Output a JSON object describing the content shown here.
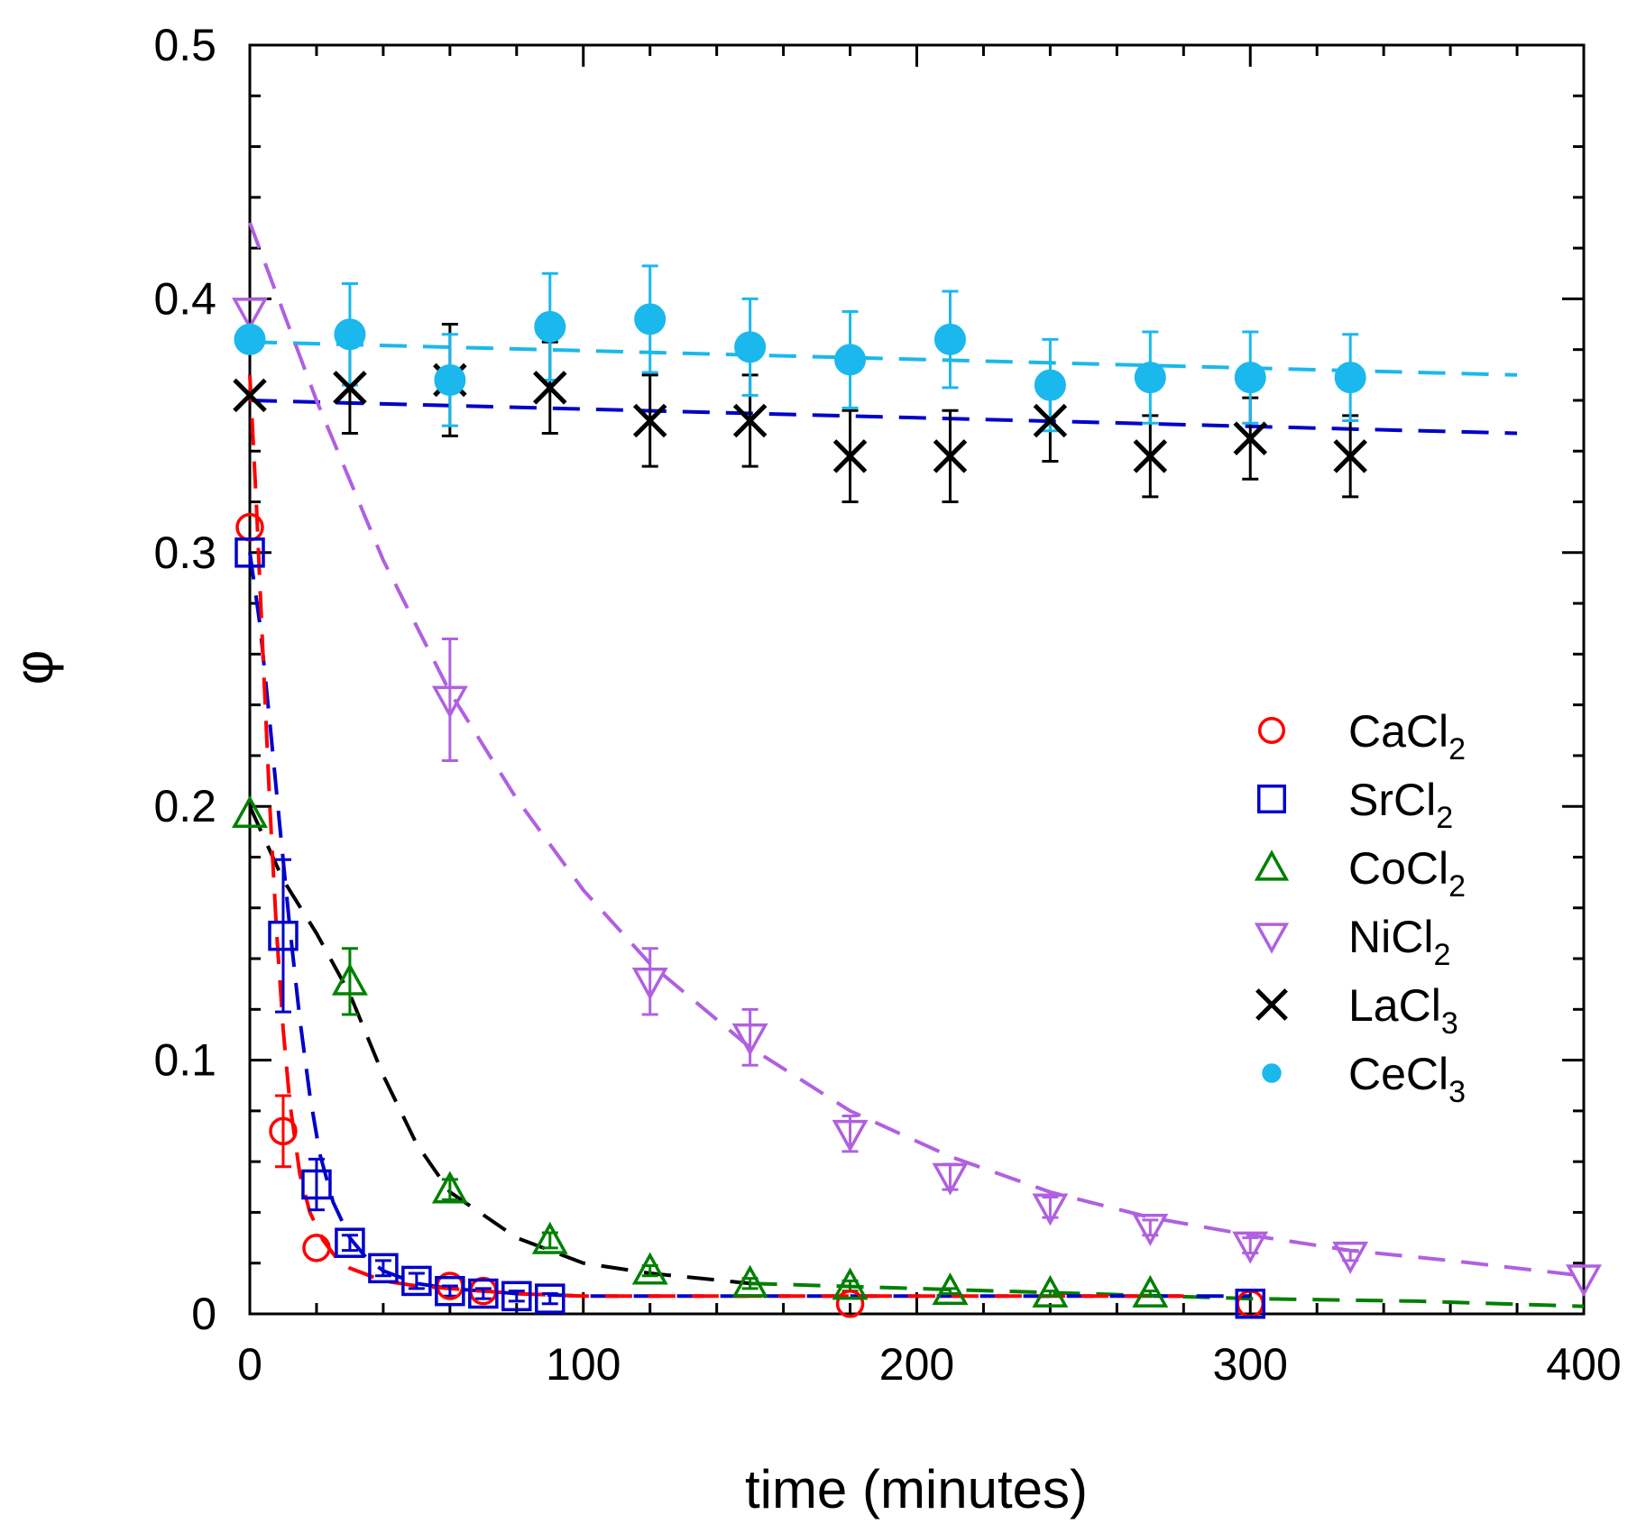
{
  "chart_data": {
    "type": "scatter",
    "title": "",
    "xlabel": "time (minutes)",
    "ylabel": "φ",
    "xlim": [
      0,
      400
    ],
    "ylim": [
      0,
      0.5
    ],
    "xticks": [
      0,
      100,
      200,
      300,
      400
    ],
    "yticks": [
      0,
      0.1,
      0.2,
      0.3,
      0.4,
      0.5
    ],
    "ytick_labels": [
      "0",
      "0.1",
      "0.2",
      "0.3",
      "0.4",
      "0.5"
    ],
    "legend_position": "right-middle",
    "series": [
      {
        "id": "cacl2",
        "label": "CaCl",
        "subscript": "2",
        "marker": "circle-open",
        "color": "#ff0000",
        "x": [
          0,
          10,
          20,
          60,
          70,
          180,
          300
        ],
        "y": [
          0.31,
          0.072,
          0.026,
          0.011,
          0.009,
          0.004,
          0.004
        ],
        "err": [
          0,
          0.014,
          0,
          0,
          0,
          0,
          0
        ]
      },
      {
        "id": "srcl2",
        "label": "SrCl",
        "subscript": "2",
        "marker": "square-open",
        "color": "#0000cc",
        "x": [
          0,
          10,
          20,
          30,
          40,
          50,
          60,
          70,
          80,
          90,
          300
        ],
        "y": [
          0.3,
          0.149,
          0.051,
          0.028,
          0.018,
          0.013,
          0.009,
          0.008,
          0.007,
          0.006,
          0.004
        ],
        "err": [
          0,
          0.03,
          0.01,
          0.003,
          0.003,
          0.003,
          0.002,
          0.002,
          0.002,
          0.002,
          0
        ]
      },
      {
        "id": "cocl2",
        "label": "CoCl",
        "subscript": "2",
        "marker": "triangle-up-open",
        "color": "#008000",
        "x": [
          0,
          30,
          60,
          90,
          120,
          150,
          180,
          210,
          240,
          270
        ],
        "y": [
          0.197,
          0.131,
          0.049,
          0.029,
          0.017,
          0.012,
          0.011,
          0.009,
          0.008,
          0.008
        ],
        "err": [
          0,
          0.013,
          0.004,
          0.003,
          0.002,
          0.002,
          0.002,
          0.001,
          0.001,
          0.001
        ]
      },
      {
        "id": "nicl2",
        "label": "NiCl",
        "subscript": "2",
        "marker": "triangle-down-open",
        "color": "#b060e0",
        "x": [
          0,
          60,
          120,
          150,
          180,
          210,
          240,
          270,
          300,
          330,
          400
        ],
        "y": [
          0.395,
          0.242,
          0.131,
          0.109,
          0.071,
          0.054,
          0.042,
          0.034,
          0.027,
          0.023,
          0.014
        ],
        "err": [
          0,
          0.024,
          0.013,
          0.011,
          0.007,
          0.005,
          0.004,
          0.003,
          0.003,
          0.002,
          0
        ]
      },
      {
        "id": "lacl3",
        "label": "LaCl",
        "subscript": "3",
        "marker": "x",
        "color": "#000000",
        "x": [
          0,
          30,
          60,
          90,
          120,
          150,
          180,
          210,
          240,
          270,
          300,
          330
        ],
        "y": [
          0.362,
          0.365,
          0.368,
          0.365,
          0.352,
          0.352,
          0.338,
          0.338,
          0.352,
          0.338,
          0.345,
          0.338
        ],
        "err": [
          0,
          0.018,
          0.022,
          0.018,
          0.018,
          0.018,
          0.018,
          0.018,
          0.016,
          0.016,
          0.016,
          0.016
        ]
      },
      {
        "id": "cecl3",
        "label": "CeCl",
        "subscript": "3",
        "marker": "circle-filled",
        "color": "#1ab8ec",
        "x": [
          0,
          30,
          60,
          90,
          120,
          150,
          180,
          210,
          240,
          270,
          300,
          330
        ],
        "y": [
          0.384,
          0.386,
          0.368,
          0.389,
          0.392,
          0.381,
          0.376,
          0.384,
          0.366,
          0.369,
          0.369,
          0.369
        ],
        "err": [
          0,
          0.02,
          0.018,
          0.021,
          0.021,
          0.019,
          0.019,
          0.019,
          0.018,
          0.018,
          0.018,
          0.017
        ]
      }
    ],
    "fits": [
      {
        "id": "fit-cecl3",
        "color": "#1ab8ec",
        "x": [
          0,
          380
        ],
        "y": [
          0.383,
          0.37
        ]
      },
      {
        "id": "fit-lacl3",
        "color": "#0000cc",
        "x": [
          0,
          380
        ],
        "y": [
          0.36,
          0.347
        ]
      },
      {
        "id": "fit-nicl2",
        "color": "#b060e0",
        "x": [
          0,
          20,
          40,
          60,
          80,
          100,
          120,
          150,
          180,
          210,
          240,
          270,
          300,
          330,
          360,
          400
        ],
        "y": [
          0.43,
          0.36,
          0.297,
          0.245,
          0.203,
          0.167,
          0.138,
          0.105,
          0.08,
          0.062,
          0.048,
          0.038,
          0.031,
          0.025,
          0.021,
          0.015
        ]
      },
      {
        "id": "fit-cocl2",
        "color": "#000000",
        "x": [
          0,
          10,
          20,
          30,
          40,
          50,
          60,
          80,
          100,
          120,
          150
        ],
        "y": [
          0.2,
          0.171,
          0.15,
          0.126,
          0.094,
          0.067,
          0.048,
          0.03,
          0.02,
          0.016,
          0.012
        ]
      },
      {
        "id": "fit-cocl2-tail",
        "color": "#008000",
        "x": [
          150,
          200,
          250,
          300,
          350,
          400
        ],
        "y": [
          0.012,
          0.01,
          0.008,
          0.006,
          0.005,
          0.003
        ]
      },
      {
        "id": "fit-srcl2",
        "color": "#0000cc",
        "x": [
          0,
          3,
          6,
          9,
          12,
          15,
          18,
          21,
          25,
          30,
          35,
          40,
          50,
          60,
          80,
          100,
          150,
          200,
          250,
          300
        ],
        "y": [
          0.3,
          0.272,
          0.233,
          0.192,
          0.152,
          0.116,
          0.086,
          0.063,
          0.044,
          0.03,
          0.022,
          0.017,
          0.012,
          0.01,
          0.008,
          0.007,
          0.007,
          0.007,
          0.007,
          0.007
        ]
      },
      {
        "id": "fit-cacl2",
        "color": "#ff0000",
        "x": [
          0,
          2,
          4,
          6,
          8,
          10,
          12,
          15,
          18,
          22,
          26,
          30,
          40,
          50,
          60,
          80,
          100,
          150,
          200,
          250,
          280
        ],
        "y": [
          0.37,
          0.318,
          0.258,
          0.2,
          0.151,
          0.112,
          0.083,
          0.055,
          0.04,
          0.029,
          0.022,
          0.018,
          0.013,
          0.011,
          0.01,
          0.008,
          0.007,
          0.007,
          0.007,
          0.007,
          0.007
        ]
      }
    ]
  }
}
